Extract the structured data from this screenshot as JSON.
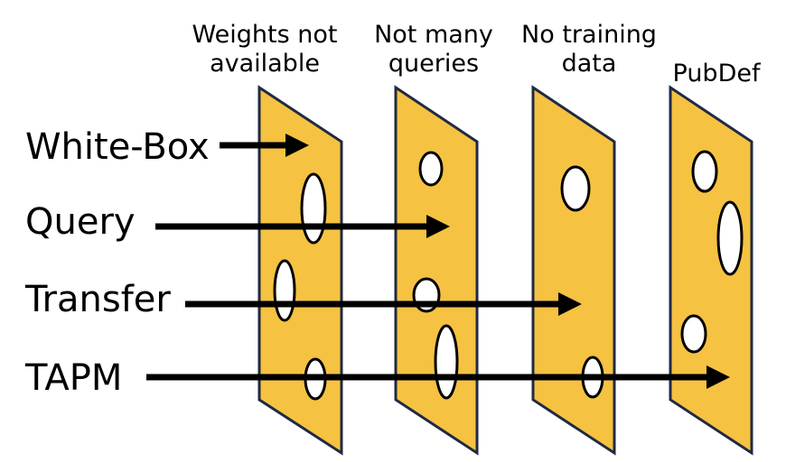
{
  "layers": [
    {
      "header_lines": [
        "Weights not",
        "available"
      ]
    },
    {
      "header_lines": [
        "Not many",
        "queries"
      ]
    },
    {
      "header_lines": [
        "No training",
        "data"
      ]
    },
    {
      "header_lines": [
        "PubDef"
      ]
    }
  ],
  "attacks": [
    {
      "label": "White-Box",
      "passes_through_layers": 0
    },
    {
      "label": "Query",
      "passes_through_layers": 1
    },
    {
      "label": "Transfer",
      "passes_through_layers": 2
    },
    {
      "label": "TAPM",
      "passes_through_layers": 3
    }
  ],
  "colors": {
    "slice_fill": "#f5c242",
    "slice_stroke": "#1f2a44",
    "hole_fill": "#ffffff",
    "arrow": "#000000",
    "text": "#000000",
    "background": "#ffffff"
  }
}
